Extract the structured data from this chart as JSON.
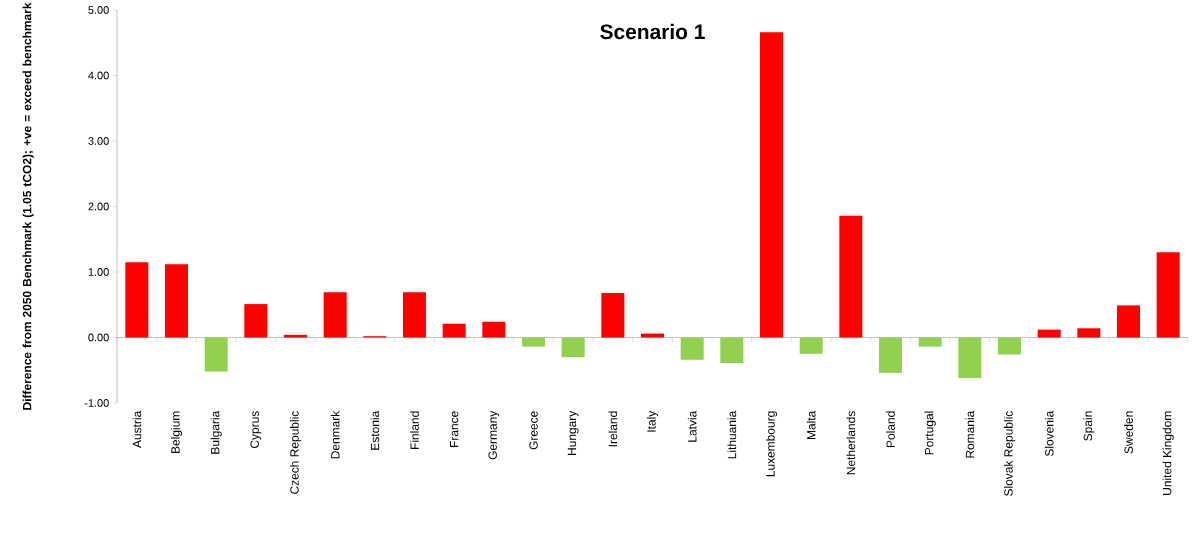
{
  "chart_data": {
    "type": "bar",
    "title": "Scenario 1",
    "ylabel": "Difference from 2050 Benchmark (1.05 tCO2); +ve = exceed benchmark",
    "categories": [
      "Austria",
      "Belgium",
      "Bulgaria",
      "Cyprus",
      "Czech Republic",
      "Denmark",
      "Estonia",
      "Finland",
      "France",
      "Germany",
      "Greece",
      "Hungary",
      "Ireland",
      "Italy",
      "Latvia",
      "Lithuania",
      "Luxembourg",
      "Malta",
      "Netherlands",
      "Poland",
      "Portugal",
      "Romania",
      "Slovak Republic",
      "Slovenia",
      "Spain",
      "Sweden",
      "United Kingdom"
    ],
    "values": [
      1.15,
      1.12,
      -0.52,
      0.51,
      0.04,
      0.69,
      0.02,
      0.69,
      0.21,
      0.24,
      -0.14,
      -0.3,
      0.68,
      0.06,
      -0.34,
      -0.39,
      4.66,
      -0.25,
      1.86,
      -0.54,
      -0.14,
      -0.62,
      -0.26,
      0.12,
      0.14,
      0.49,
      1.3
    ],
    "colors": [
      "#ff0000",
      "#ff0000",
      "#92d050",
      "#ff0000",
      "#ff0000",
      "#ff0000",
      "#ff0000",
      "#ff0000",
      "#ff0000",
      "#ff0000",
      "#92d050",
      "#92d050",
      "#ff0000",
      "#ff0000",
      "#92d050",
      "#92d050",
      "#ff0000",
      "#92d050",
      "#ff0000",
      "#92d050",
      "#92d050",
      "#92d050",
      "#92d050",
      "#ff0000",
      "#ff0000",
      "#ff0000",
      "#ff0000"
    ],
    "ylim": [
      -1,
      5
    ],
    "yticks": [
      {
        "value": -1,
        "label": "-1.00"
      },
      {
        "value": 0,
        "label": "0.00"
      },
      {
        "value": 1,
        "label": "1.00"
      },
      {
        "value": 2,
        "label": "2.00"
      },
      {
        "value": 3,
        "label": "3.00"
      },
      {
        "value": 4,
        "label": "4.00"
      },
      {
        "value": 5,
        "label": "5.00"
      }
    ]
  }
}
